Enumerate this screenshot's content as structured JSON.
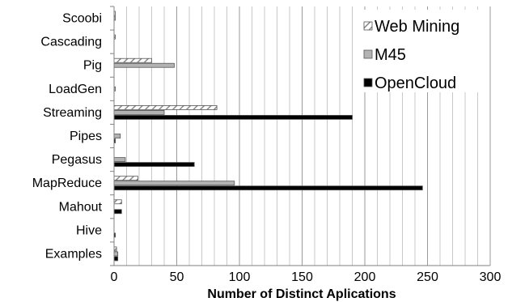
{
  "chart_data": {
    "type": "bar",
    "orientation": "horizontal",
    "categories": [
      "Scoobi",
      "Cascading",
      "Pig",
      "LoadGen",
      "Streaming",
      "Pipes",
      "Pegasus",
      "MapReduce",
      "Mahout",
      "Hive",
      "Examples"
    ],
    "series": [
      {
        "name": "Web Mining",
        "values": [
          1,
          1,
          30,
          0,
          82,
          0,
          0,
          19,
          6,
          0,
          2
        ],
        "color": "#ffffff",
        "pattern": "diagonal-hatch"
      },
      {
        "name": "M45",
        "values": [
          1,
          0,
          48,
          1,
          40,
          5,
          9,
          96,
          0,
          0,
          3
        ],
        "color": "#b3b3b3",
        "pattern": "solid"
      },
      {
        "name": "OpenCloud",
        "values": [
          0,
          0,
          0,
          0,
          190,
          1,
          64,
          246,
          6,
          1,
          3
        ],
        "color": "#000000",
        "pattern": "solid"
      }
    ],
    "xlabel": "Number of Distinct Aplications",
    "ylabel": "",
    "xlim": [
      0,
      300
    ],
    "xticks": [
      0,
      50,
      100,
      150,
      200,
      250,
      300
    ],
    "grid": "vertical",
    "legend_position": "top-right"
  }
}
